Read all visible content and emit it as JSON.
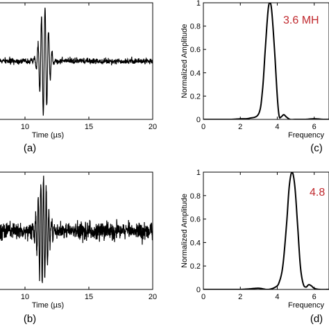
{
  "chart_data": [
    {
      "panel": "(a)",
      "type": "line",
      "xlabel": "Time (µs)",
      "xlim": [
        7.5,
        20
      ],
      "xticks": [
        10,
        15,
        20
      ],
      "ylim": [
        -1,
        1
      ],
      "burst": {
        "center": 11.5,
        "width": 0.45,
        "freq": 3.6,
        "amp": 0.95,
        "noise": 0.04,
        "seed": 7
      }
    },
    {
      "panel": "(c)",
      "type": "line",
      "xlabel": "Frequency",
      "ylabel": "Normalized Amplitude",
      "xlim": [
        0,
        6.8
      ],
      "ylim": [
        0,
        1
      ],
      "xticks": [
        0,
        2,
        4,
        6
      ],
      "yticks": [
        0,
        0.2,
        0.4,
        0.6,
        0.8,
        1
      ],
      "x": [
        0,
        0.5,
        1,
        1.5,
        2,
        2.5,
        3.0,
        3.2,
        3.35,
        3.5,
        3.6,
        3.7,
        3.85,
        4.0,
        4.1,
        4.2,
        4.35,
        4.5,
        4.7,
        5,
        5.5,
        6,
        6.5,
        6.8
      ],
      "y": [
        0.0,
        0.0,
        0.0,
        0.0,
        0.005,
        0.01,
        0.05,
        0.25,
        0.6,
        0.93,
        1.0,
        0.93,
        0.6,
        0.2,
        0.03,
        0.02,
        0.04,
        0.02,
        0.0,
        0.0,
        0.0,
        0.005,
        0.0,
        0.0
      ],
      "annotation": "3.6 MH"
    },
    {
      "panel": "(b)",
      "type": "line",
      "xlabel": "Time (µs)",
      "xlim": [
        7.5,
        20
      ],
      "xticks": [
        10,
        15,
        20
      ],
      "ylim": [
        -1,
        1
      ],
      "burst": {
        "center": 11.4,
        "width": 0.5,
        "freq": 4.8,
        "amp": 0.95,
        "noise": 0.12,
        "seed": 13
      }
    },
    {
      "panel": "(d)",
      "type": "line",
      "xlabel": "Frequency",
      "ylabel": "Normalized Amplitude",
      "xlim": [
        0,
        6.8
      ],
      "ylim": [
        0,
        1
      ],
      "xticks": [
        0,
        2,
        4,
        6
      ],
      "yticks": [
        0,
        0.2,
        0.4,
        0.6,
        0.8,
        1
      ],
      "x": [
        0,
        0.5,
        1,
        1.5,
        2,
        2.5,
        3,
        3.5,
        3.9,
        4.1,
        4.3,
        4.5,
        4.65,
        4.8,
        4.95,
        5.1,
        5.25,
        5.4,
        5.55,
        5.7,
        5.85,
        6,
        6.3,
        6.8
      ],
      "y": [
        0.0,
        0.0,
        0.0,
        0.0,
        0.0,
        0.005,
        0.01,
        0.0,
        0.02,
        0.06,
        0.2,
        0.55,
        0.88,
        1.0,
        0.88,
        0.55,
        0.2,
        0.05,
        0.02,
        0.04,
        0.03,
        0.01,
        0.0,
        0.0
      ],
      "annotation": "4.8"
    }
  ]
}
